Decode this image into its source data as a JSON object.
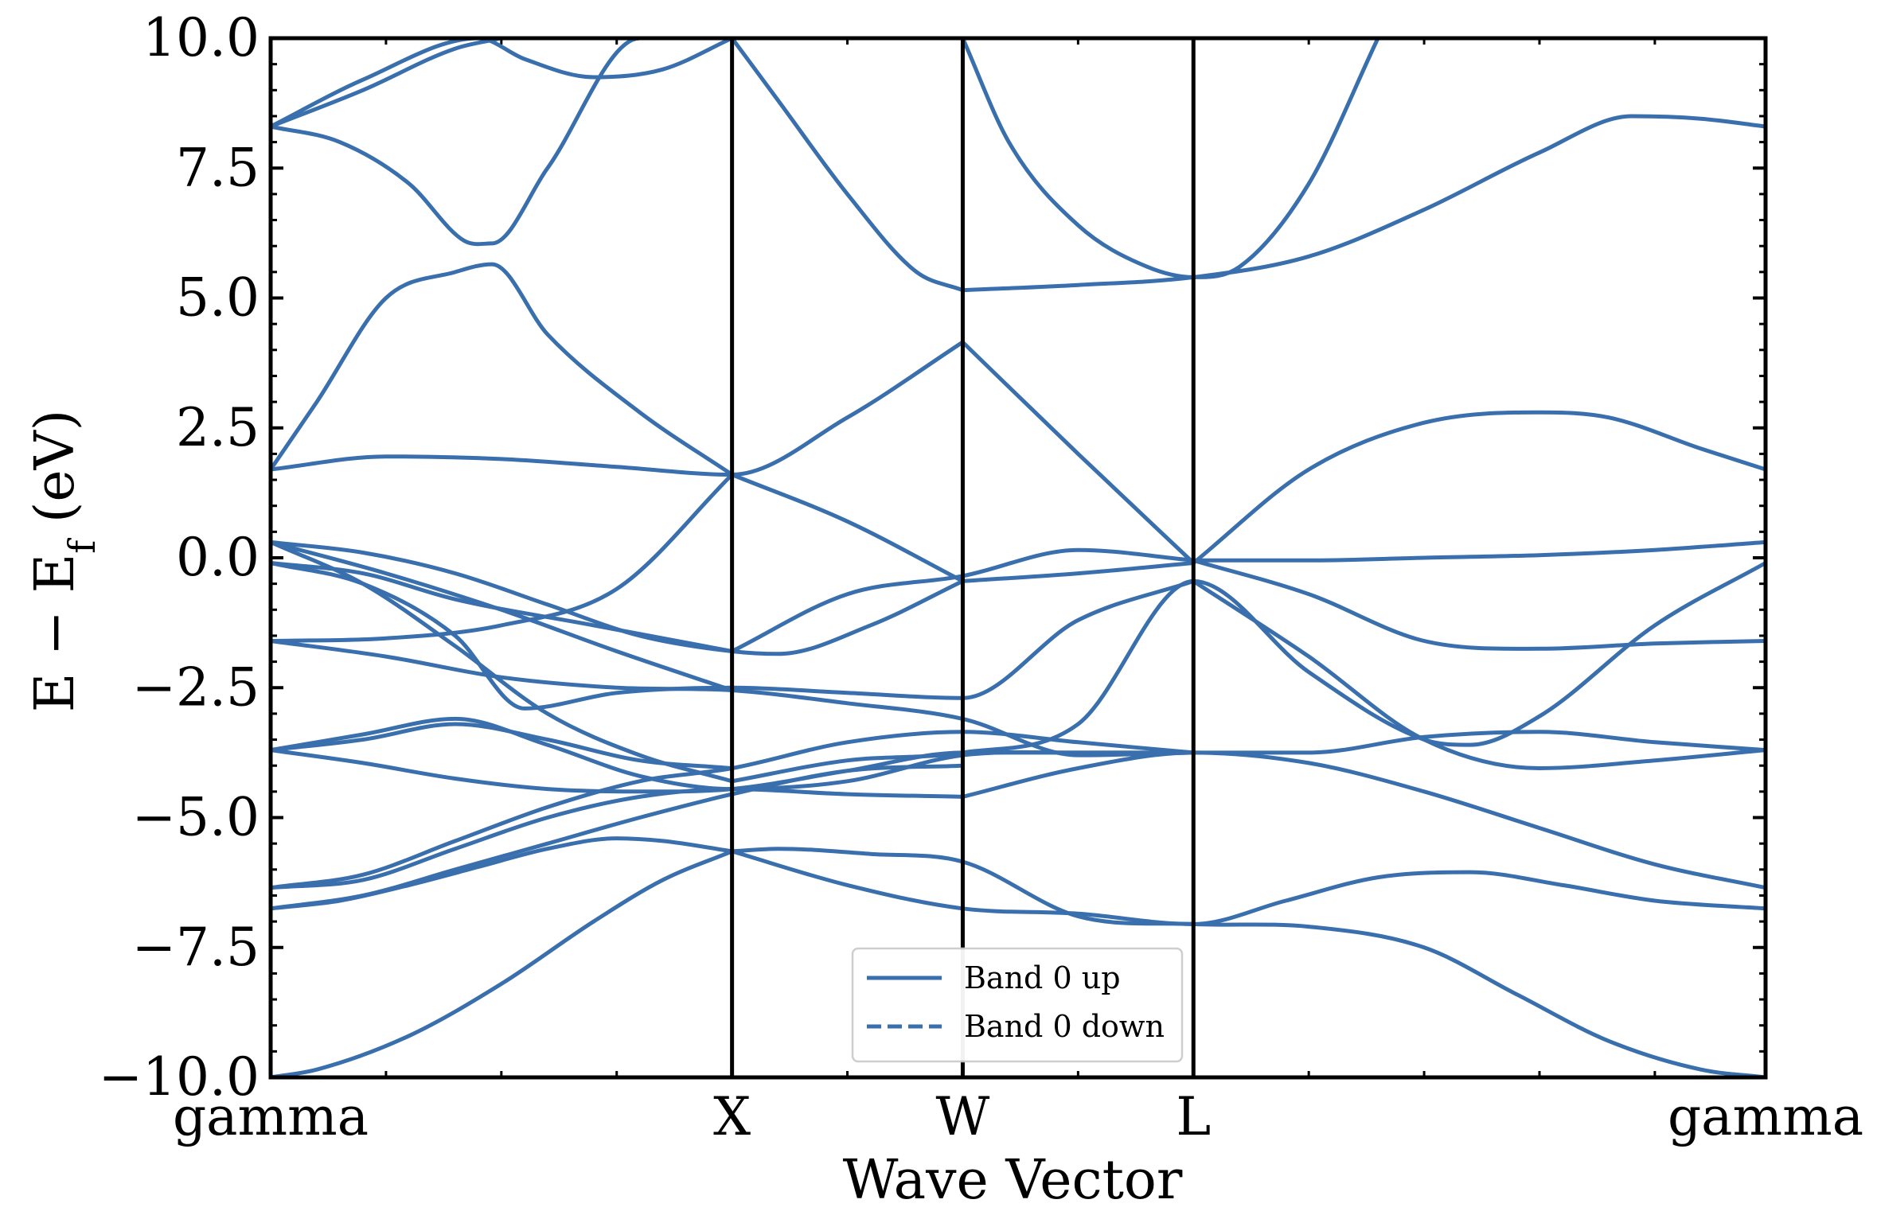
{
  "chart_data": {
    "type": "line",
    "title": "",
    "xlabel": "Wave Vector",
    "ylabel": "E − E_f (eV)",
    "ylabel_main": "E − E",
    "ylabel_sub": "f",
    "ylabel_tail": " (eV)",
    "ylim": [
      -10.0,
      10.0
    ],
    "xlim": [
      0.0,
      3.24
    ],
    "yticks": [
      -10.0,
      -7.5,
      -5.0,
      -2.5,
      0.0,
      2.5,
      5.0,
      7.5,
      10.0
    ],
    "ytick_labels": [
      "−10.0",
      "−7.5",
      "−5.0",
      "−2.5",
      "0.0",
      "2.5",
      "5.0",
      "7.5",
      "10.0"
    ],
    "kpoint_labels": [
      "gamma",
      "X",
      "W",
      "L",
      "gamma"
    ],
    "kpoint_positions": [
      0.0,
      1.0,
      1.5,
      2.0,
      3.24
    ],
    "grid": false,
    "line_color": "#3a6fad",
    "legend": {
      "placement": "lower-center",
      "entries": [
        {
          "label": "Band 0 up",
          "style": "solid"
        },
        {
          "label": "Band 0 down",
          "style": "dashed"
        }
      ]
    },
    "series": [
      {
        "x": [
          0.0,
          0.1,
          0.3,
          0.5,
          0.7,
          0.85,
          1.0
        ],
        "y": [
          -10.0,
          -9.85,
          -9.2,
          -8.2,
          -7.0,
          -6.2,
          -5.65
        ]
      },
      {
        "x": [
          1.0,
          1.1,
          1.3,
          1.5,
          1.75,
          2.0,
          2.25,
          2.5,
          2.7,
          2.9,
          3.1,
          3.24
        ],
        "y": [
          -5.65,
          -5.6,
          -5.7,
          -5.85,
          -6.9,
          -7.05,
          -7.1,
          -7.5,
          -8.4,
          -9.3,
          -9.85,
          -10.0
        ]
      },
      {
        "x": [
          0.0,
          0.15,
          0.3,
          0.45,
          0.6,
          0.75,
          0.85,
          1.0
        ],
        "y": [
          -6.75,
          -6.6,
          -6.3,
          -5.95,
          -5.6,
          -5.4,
          -5.45,
          -5.65
        ]
      },
      {
        "x": [
          1.0,
          1.25,
          1.5,
          1.75,
          2.0,
          2.2,
          2.4,
          2.6,
          2.8,
          3.0,
          3.24
        ],
        "y": [
          -5.65,
          -6.3,
          -6.75,
          -6.85,
          -7.05,
          -6.6,
          -6.15,
          -6.05,
          -6.3,
          -6.6,
          -6.75
        ]
      },
      {
        "x": [
          0.0,
          0.2,
          0.4,
          0.6,
          0.8,
          1.0,
          1.25,
          1.5
        ],
        "y": [
          -6.75,
          -6.5,
          -6.0,
          -5.5,
          -5.0,
          -4.55,
          -4.1,
          -4.0
        ]
      },
      {
        "x": [
          0.0,
          0.2,
          0.4,
          0.6,
          0.8,
          1.0,
          1.25,
          1.5
        ],
        "y": [
          -6.35,
          -6.2,
          -5.6,
          -5.0,
          -4.6,
          -4.45,
          -4.55,
          -4.6
        ]
      },
      {
        "x": [
          0.0,
          0.2,
          0.4,
          0.6,
          0.8,
          1.0,
          1.25,
          1.5,
          1.75,
          2.0
        ],
        "y": [
          -6.35,
          -6.1,
          -5.45,
          -4.8,
          -4.3,
          -4.05,
          -3.55,
          -3.35,
          -3.55,
          -3.75
        ]
      },
      {
        "x": [
          1.5,
          1.75,
          2.0,
          2.25,
          2.5,
          2.75,
          3.0,
          3.24
        ],
        "y": [
          -4.6,
          -4.05,
          -3.75,
          -3.95,
          -4.5,
          -5.2,
          -5.9,
          -6.35
        ]
      },
      {
        "x": [
          0.0,
          0.2,
          0.4,
          0.6,
          0.8,
          1.0,
          1.25,
          1.5,
          1.75,
          2.0
        ],
        "y": [
          -3.7,
          -3.95,
          -4.25,
          -4.45,
          -4.5,
          -4.45,
          -4.1,
          -3.75,
          -3.75,
          -3.75
        ]
      },
      {
        "x": [
          0.0,
          0.2,
          0.4,
          0.6,
          0.8,
          1.0,
          1.25,
          1.5,
          1.75,
          2.0,
          2.25,
          2.5,
          2.75,
          3.0,
          3.24
        ],
        "y": [
          -3.7,
          -3.4,
          -3.1,
          -3.6,
          -4.2,
          -4.45,
          -4.3,
          -3.8,
          -3.75,
          -3.75,
          -3.75,
          -3.45,
          -3.35,
          -3.55,
          -3.7
        ]
      },
      {
        "x": [
          0.0,
          0.2,
          0.4,
          0.6,
          0.8,
          1.0
        ],
        "y": [
          -3.7,
          -3.5,
          -3.2,
          -3.5,
          -3.9,
          -4.05
        ]
      },
      {
        "x": [
          0.0,
          0.2,
          0.4,
          0.6,
          0.8,
          1.0
        ],
        "y": [
          0.3,
          -0.5,
          -1.7,
          -3.0,
          -3.8,
          -4.3
        ]
      },
      {
        "x": [
          1.0,
          1.25,
          1.5,
          1.75,
          2.0,
          2.25,
          2.5,
          2.6,
          2.75,
          3.0,
          3.24
        ],
        "y": [
          -4.3,
          -3.9,
          -3.75,
          -3.2,
          -0.45,
          -2.2,
          -3.5,
          -3.6,
          -3.05,
          -1.3,
          -0.1
        ]
      },
      {
        "x": [
          0.0,
          0.2,
          0.4,
          0.55,
          0.75,
          1.0,
          1.25,
          1.5,
          1.75,
          2.0
        ],
        "y": [
          -0.1,
          -0.5,
          -1.5,
          -2.9,
          -2.6,
          -2.5,
          -2.6,
          -2.7,
          -1.2,
          -0.45
        ]
      },
      {
        "x": [
          0.0,
          0.25,
          0.5,
          0.75,
          1.0,
          1.25,
          1.5,
          1.75,
          2.0
        ],
        "y": [
          -1.6,
          -1.9,
          -2.3,
          -2.5,
          -2.55,
          -2.8,
          -3.1,
          -3.8,
          -3.75
        ]
      },
      {
        "x": [
          2.0,
          2.25,
          2.5,
          2.75,
          3.0,
          3.24
        ],
        "y": [
          -0.45,
          -1.9,
          -3.5,
          -4.05,
          -3.9,
          -3.7
        ]
      },
      {
        "x": [
          0.0,
          0.2,
          0.4,
          0.6,
          0.8,
          1.0,
          1.1,
          1.3,
          1.5
        ],
        "y": [
          0.3,
          0.1,
          -0.3,
          -0.9,
          -1.5,
          -1.8,
          -1.85,
          -1.3,
          -0.45
        ]
      },
      {
        "x": [
          0.0,
          0.25,
          0.5,
          0.75,
          1.0
        ],
        "y": [
          0.3,
          -0.3,
          -1.0,
          -1.8,
          -2.55
        ]
      },
      {
        "x": [
          0.0,
          0.25,
          0.5,
          0.75,
          1.0
        ],
        "y": [
          -1.6,
          -1.55,
          -1.3,
          -0.6,
          1.6
        ]
      },
      {
        "x": [
          0.0,
          0.2,
          0.4,
          0.7,
          1.0
        ],
        "y": [
          -0.1,
          -0.3,
          -0.8,
          -1.3,
          -1.8
        ]
      },
      {
        "x": [
          1.0,
          1.25,
          1.5,
          1.75,
          2.0
        ],
        "y": [
          -1.8,
          -0.7,
          -0.35,
          0.15,
          -0.05
        ]
      },
      {
        "x": [
          2.0,
          2.25,
          2.5,
          2.75,
          3.0,
          3.24
        ],
        "y": [
          -0.05,
          -0.05,
          0.0,
          0.05,
          0.15,
          0.3
        ]
      },
      {
        "x": [
          2.0,
          2.25,
          2.5,
          2.75,
          3.0,
          3.24
        ],
        "y": [
          -0.05,
          -0.7,
          -1.6,
          -1.75,
          -1.65,
          -1.6
        ]
      },
      {
        "x": [
          1.0,
          1.25,
          1.5
        ],
        "y": [
          1.6,
          0.7,
          -0.45
        ]
      },
      {
        "x": [
          1.5,
          1.75,
          2.0
        ],
        "y": [
          -0.45,
          -0.3,
          -0.1
        ]
      },
      {
        "x": [
          1.5,
          1.75,
          2.0
        ],
        "y": [
          4.15,
          2.0,
          -0.1
        ]
      },
      {
        "x": [
          0.0,
          0.25,
          0.5,
          0.75,
          1.0,
          1.25,
          1.5
        ],
        "y": [
          1.7,
          1.95,
          1.9,
          1.75,
          1.6,
          2.7,
          4.15
        ]
      },
      {
        "x": [
          0.0,
          0.1,
          0.25,
          0.4,
          0.48,
          0.6,
          0.8,
          1.0
        ],
        "y": [
          1.7,
          3.0,
          5.0,
          5.5,
          5.65,
          4.3,
          2.8,
          1.6
        ]
      },
      {
        "x": [
          2.0,
          2.25,
          2.5,
          2.75,
          2.9,
          3.1,
          3.24
        ],
        "y": [
          -0.1,
          1.7,
          2.6,
          2.8,
          2.7,
          2.1,
          1.7
        ]
      },
      {
        "x": [
          1.5,
          1.75,
          2.0,
          2.25,
          2.5,
          2.75,
          2.95,
          3.1,
          3.24
        ],
        "y": [
          5.15,
          5.25,
          5.4,
          5.8,
          6.7,
          7.8,
          8.5,
          8.45,
          8.3
        ]
      },
      {
        "x": [
          1.5,
          1.6,
          1.75,
          1.9,
          2.0,
          2.1,
          2.25,
          2.4
        ],
        "y": [
          10.0,
          8.0,
          6.4,
          5.6,
          5.4,
          5.6,
          7.2,
          10.0
        ]
      },
      {
        "x": [
          1.0,
          1.1,
          1.25,
          1.4,
          1.5
        ],
        "y": [
          10.0,
          8.8,
          7.0,
          5.5,
          5.15
        ]
      },
      {
        "x": [
          0.0,
          0.15,
          0.3,
          0.42,
          0.48,
          0.6,
          0.8,
          1.0
        ],
        "y": [
          8.3,
          8.0,
          7.2,
          6.1,
          6.05,
          7.5,
          10.0,
          10.0
        ]
      },
      {
        "x": [
          0.0,
          0.2,
          0.45,
          0.55,
          0.7,
          0.85,
          1.0
        ],
        "y": [
          8.3,
          9.2,
          10.0,
          9.6,
          9.25,
          9.4,
          10.0
        ]
      },
      {
        "x": [
          0.0,
          0.2,
          0.4,
          0.5
        ],
        "y": [
          8.3,
          9.0,
          9.8,
          10.0
        ]
      }
    ]
  }
}
